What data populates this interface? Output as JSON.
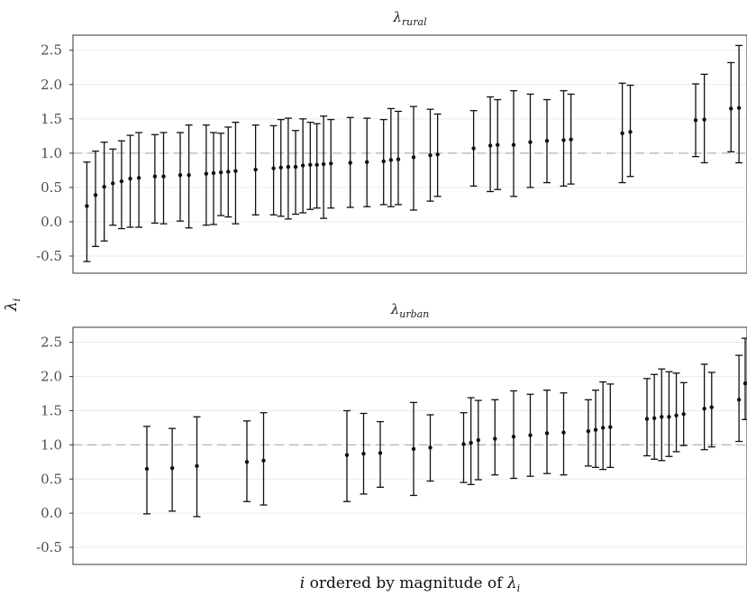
{
  "chart_data": [
    {
      "type": "errorbar",
      "title": "λrural",
      "ylabel": "λi",
      "xlabel": "",
      "ylim": [
        -0.75,
        2.72
      ],
      "yticks": [
        "-0.5",
        "0.0",
        "0.5",
        "1.0",
        "1.5",
        "2.0",
        "2.5"
      ],
      "ytick_values": [
        -0.5,
        0.0,
        0.5,
        1.0,
        1.5,
        2.0,
        2.5
      ],
      "reference_line": 1.0,
      "xlim": [
        0,
        100
      ],
      "points": [
        {
          "x": 1.0,
          "y": 0.23,
          "lo": -0.58,
          "hi": 0.87
        },
        {
          "x": 2.3,
          "y": 0.39,
          "lo": -0.36,
          "hi": 1.03
        },
        {
          "x": 3.6,
          "y": 0.51,
          "lo": -0.28,
          "hi": 1.16
        },
        {
          "x": 4.9,
          "y": 0.56,
          "lo": -0.05,
          "hi": 1.06
        },
        {
          "x": 6.2,
          "y": 0.59,
          "lo": -0.1,
          "hi": 1.18
        },
        {
          "x": 7.5,
          "y": 0.63,
          "lo": -0.08,
          "hi": 1.26
        },
        {
          "x": 8.8,
          "y": 0.64,
          "lo": -0.08,
          "hi": 1.3
        },
        {
          "x": 11.2,
          "y": 0.66,
          "lo": -0.02,
          "hi": 1.27
        },
        {
          "x": 12.5,
          "y": 0.66,
          "lo": -0.03,
          "hi": 1.3
        },
        {
          "x": 15.0,
          "y": 0.68,
          "lo": 0.01,
          "hi": 1.3
        },
        {
          "x": 16.3,
          "y": 0.68,
          "lo": -0.09,
          "hi": 1.41
        },
        {
          "x": 18.9,
          "y": 0.7,
          "lo": -0.05,
          "hi": 1.41
        },
        {
          "x": 20.0,
          "y": 0.71,
          "lo": -0.04,
          "hi": 1.3
        },
        {
          "x": 21.1,
          "y": 0.72,
          "lo": 0.09,
          "hi": 1.29
        },
        {
          "x": 22.2,
          "y": 0.73,
          "lo": 0.07,
          "hi": 1.38
        },
        {
          "x": 23.3,
          "y": 0.74,
          "lo": -0.03,
          "hi": 1.45
        },
        {
          "x": 26.3,
          "y": 0.76,
          "lo": 0.1,
          "hi": 1.41
        },
        {
          "x": 29.0,
          "y": 0.78,
          "lo": 0.1,
          "hi": 1.4
        },
        {
          "x": 30.1,
          "y": 0.79,
          "lo": 0.08,
          "hi": 1.49
        },
        {
          "x": 31.2,
          "y": 0.8,
          "lo": 0.04,
          "hi": 1.51
        },
        {
          "x": 32.3,
          "y": 0.8,
          "lo": 0.11,
          "hi": 1.33
        },
        {
          "x": 33.4,
          "y": 0.82,
          "lo": 0.13,
          "hi": 1.5
        },
        {
          "x": 34.5,
          "y": 0.83,
          "lo": 0.18,
          "hi": 1.45
        },
        {
          "x": 35.5,
          "y": 0.83,
          "lo": 0.2,
          "hi": 1.43
        },
        {
          "x": 36.5,
          "y": 0.84,
          "lo": 0.05,
          "hi": 1.54
        },
        {
          "x": 37.6,
          "y": 0.85,
          "lo": 0.2,
          "hi": 1.49
        },
        {
          "x": 40.5,
          "y": 0.86,
          "lo": 0.21,
          "hi": 1.52
        },
        {
          "x": 43.0,
          "y": 0.87,
          "lo": 0.22,
          "hi": 1.51
        },
        {
          "x": 45.5,
          "y": 0.88,
          "lo": 0.25,
          "hi": 1.49
        },
        {
          "x": 46.6,
          "y": 0.9,
          "lo": 0.22,
          "hi": 1.65
        },
        {
          "x": 47.7,
          "y": 0.91,
          "lo": 0.25,
          "hi": 1.61
        },
        {
          "x": 50.0,
          "y": 0.94,
          "lo": 0.17,
          "hi": 1.68
        },
        {
          "x": 52.5,
          "y": 0.97,
          "lo": 0.3,
          "hi": 1.64
        },
        {
          "x": 53.6,
          "y": 0.98,
          "lo": 0.37,
          "hi": 1.57
        },
        {
          "x": 59.0,
          "y": 1.07,
          "lo": 0.52,
          "hi": 1.62
        },
        {
          "x": 61.5,
          "y": 1.11,
          "lo": 0.44,
          "hi": 1.82
        },
        {
          "x": 62.6,
          "y": 1.12,
          "lo": 0.47,
          "hi": 1.78
        },
        {
          "x": 65.0,
          "y": 1.12,
          "lo": 0.37,
          "hi": 1.91
        },
        {
          "x": 67.5,
          "y": 1.16,
          "lo": 0.5,
          "hi": 1.86
        },
        {
          "x": 70.0,
          "y": 1.18,
          "lo": 0.57,
          "hi": 1.78
        },
        {
          "x": 72.5,
          "y": 1.19,
          "lo": 0.52,
          "hi": 1.91
        },
        {
          "x": 73.6,
          "y": 1.2,
          "lo": 0.55,
          "hi": 1.86
        },
        {
          "x": 81.3,
          "y": 1.29,
          "lo": 0.57,
          "hi": 2.02
        },
        {
          "x": 82.5,
          "y": 1.31,
          "lo": 0.66,
          "hi": 1.99
        },
        {
          "x": 92.3,
          "y": 1.48,
          "lo": 0.95,
          "hi": 2.01
        },
        {
          "x": 93.6,
          "y": 1.49,
          "lo": 0.86,
          "hi": 2.15
        },
        {
          "x": 97.6,
          "y": 1.65,
          "lo": 1.02,
          "hi": 2.32
        },
        {
          "x": 98.8,
          "y": 1.66,
          "lo": 0.86,
          "hi": 2.57
        }
      ]
    },
    {
      "type": "errorbar",
      "title": "λurban",
      "ylabel": "λi",
      "xlabel": "i ordered by magnitude of λi",
      "ylim": [
        -0.75,
        2.72
      ],
      "yticks": [
        "-0.5",
        "0.0",
        "0.5",
        "1.0",
        "1.5",
        "2.0",
        "2.5"
      ],
      "ytick_values": [
        -0.5,
        0.0,
        0.5,
        1.0,
        1.5,
        2.0,
        2.5
      ],
      "reference_line": 1.0,
      "xlim": [
        0,
        100
      ],
      "points": [
        {
          "x": 10.0,
          "y": 0.65,
          "lo": -0.01,
          "hi": 1.27
        },
        {
          "x": 13.8,
          "y": 0.66,
          "lo": 0.03,
          "hi": 1.24
        },
        {
          "x": 17.5,
          "y": 0.69,
          "lo": -0.05,
          "hi": 1.41
        },
        {
          "x": 25.0,
          "y": 0.75,
          "lo": 0.17,
          "hi": 1.35
        },
        {
          "x": 27.5,
          "y": 0.77,
          "lo": 0.12,
          "hi": 1.47
        },
        {
          "x": 40.0,
          "y": 0.85,
          "lo": 0.17,
          "hi": 1.5
        },
        {
          "x": 42.5,
          "y": 0.87,
          "lo": 0.28,
          "hi": 1.46
        },
        {
          "x": 45.0,
          "y": 0.88,
          "lo": 0.38,
          "hi": 1.34
        },
        {
          "x": 50.0,
          "y": 0.94,
          "lo": 0.26,
          "hi": 1.62
        },
        {
          "x": 52.5,
          "y": 0.96,
          "lo": 0.47,
          "hi": 1.44
        },
        {
          "x": 57.5,
          "y": 1.01,
          "lo": 0.45,
          "hi": 1.47
        },
        {
          "x": 58.6,
          "y": 1.03,
          "lo": 0.42,
          "hi": 1.69
        },
        {
          "x": 59.7,
          "y": 1.07,
          "lo": 0.49,
          "hi": 1.65
        },
        {
          "x": 62.2,
          "y": 1.09,
          "lo": 0.56,
          "hi": 1.66
        },
        {
          "x": 65.0,
          "y": 1.12,
          "lo": 0.51,
          "hi": 1.79
        },
        {
          "x": 67.5,
          "y": 1.14,
          "lo": 0.54,
          "hi": 1.74
        },
        {
          "x": 70.0,
          "y": 1.17,
          "lo": 0.58,
          "hi": 1.8
        },
        {
          "x": 72.5,
          "y": 1.18,
          "lo": 0.56,
          "hi": 1.76
        },
        {
          "x": 76.2,
          "y": 1.2,
          "lo": 0.69,
          "hi": 1.66
        },
        {
          "x": 77.3,
          "y": 1.22,
          "lo": 0.67,
          "hi": 1.8
        },
        {
          "x": 78.4,
          "y": 1.25,
          "lo": 0.64,
          "hi": 1.92
        },
        {
          "x": 79.5,
          "y": 1.26,
          "lo": 0.67,
          "hi": 1.89
        },
        {
          "x": 85.0,
          "y": 1.38,
          "lo": 0.84,
          "hi": 1.97
        },
        {
          "x": 86.1,
          "y": 1.39,
          "lo": 0.79,
          "hi": 2.03
        },
        {
          "x": 87.2,
          "y": 1.41,
          "lo": 0.77,
          "hi": 2.11
        },
        {
          "x": 88.3,
          "y": 1.41,
          "lo": 0.83,
          "hi": 2.07
        },
        {
          "x": 89.4,
          "y": 1.43,
          "lo": 0.9,
          "hi": 2.05
        },
        {
          "x": 90.5,
          "y": 1.45,
          "lo": 0.99,
          "hi": 1.91
        },
        {
          "x": 93.6,
          "y": 1.53,
          "lo": 0.93,
          "hi": 2.18
        },
        {
          "x": 94.7,
          "y": 1.55,
          "lo": 0.97,
          "hi": 2.06
        },
        {
          "x": 98.8,
          "y": 1.66,
          "lo": 1.05,
          "hi": 2.31
        },
        {
          "x": 100.0,
          "y": 1.9,
          "lo": 1.37,
          "hi": 2.56
        }
      ]
    }
  ]
}
